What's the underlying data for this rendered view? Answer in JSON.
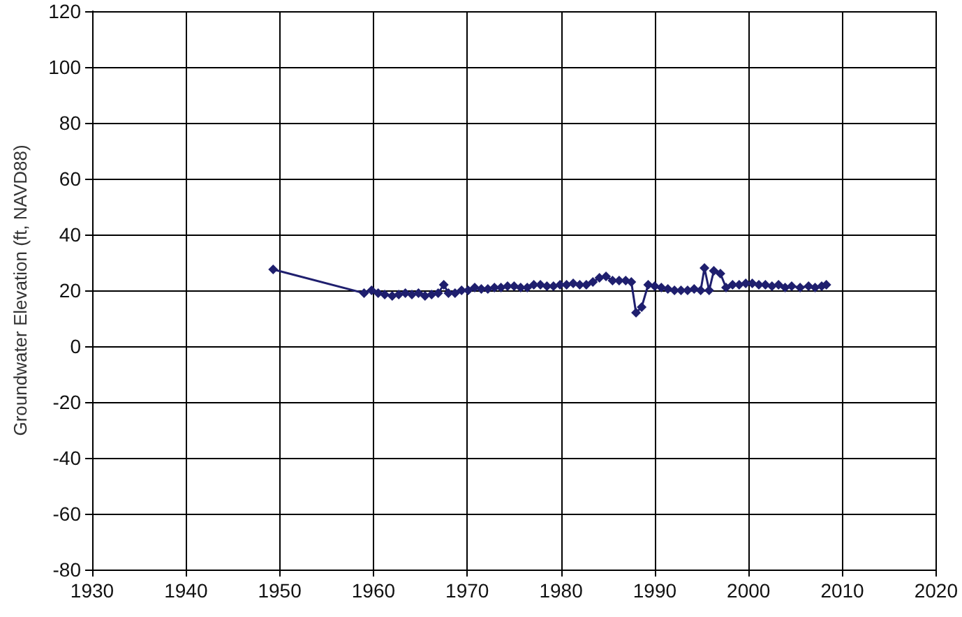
{
  "chart_data": {
    "type": "line",
    "ylabel": "Groundwater Elevation (ft, NAVD88)",
    "xlim": [
      1930,
      2020
    ],
    "xticks": [
      1930,
      1940,
      1950,
      1960,
      1970,
      1980,
      1990,
      2000,
      2010,
      2020
    ],
    "ylim": [
      -80,
      120
    ],
    "yticks": [
      -80,
      -60,
      -40,
      -20,
      0,
      20,
      40,
      60,
      80,
      100,
      120
    ],
    "grid": true,
    "marker": "diamond",
    "line_style": "solid",
    "series": [
      {
        "color": "#1f1f6e",
        "x": [
          1949.3,
          1959,
          1959.8,
          1960.5,
          1961.2,
          1962,
          1962.7,
          1963.4,
          1964.1,
          1964.8,
          1965.5,
          1966.2,
          1966.9,
          1967.5,
          1968,
          1968.7,
          1969.4,
          1970.1,
          1970.8,
          1971.5,
          1972.2,
          1972.9,
          1973.6,
          1974.3,
          1975,
          1975.7,
          1976.4,
          1977.1,
          1977.8,
          1978.5,
          1979.2,
          1979.9,
          1980.6,
          1981.3,
          1982,
          1982.7,
          1983.4,
          1984.1,
          1984.8,
          1985.5,
          1986.2,
          1986.9,
          1987.5,
          1988,
          1988.6,
          1989.3,
          1990,
          1990.7,
          1991.4,
          1992.1,
          1992.8,
          1993.5,
          1994.2,
          1994.9,
          1995.3,
          1995.8,
          1996.3,
          1997,
          1997.6,
          1998.3,
          1999,
          1999.7,
          2000.4,
          2001.1,
          2001.8,
          2002.5,
          2003.2,
          2003.9,
          2004.6,
          2005.5,
          2006.4,
          2007.1,
          2007.8,
          2008.3
        ],
        "values": [
          27.5,
          19,
          20,
          19,
          18.5,
          18,
          18.5,
          19,
          18.5,
          19,
          18,
          18.5,
          19,
          22,
          19,
          19,
          20,
          20,
          21,
          20.5,
          20.5,
          21,
          21,
          21.5,
          21.5,
          21,
          21,
          22,
          22,
          21.5,
          21.5,
          22,
          22,
          22.5,
          22,
          22,
          23,
          24.5,
          25,
          23.5,
          23.5,
          23.5,
          23,
          12,
          14,
          22,
          21.5,
          21,
          20.5,
          20,
          20,
          20,
          20.5,
          20,
          28,
          20,
          27,
          26,
          21,
          22,
          22,
          22.5,
          22.5,
          22,
          22,
          21.5,
          22,
          21,
          21.5,
          21,
          21.5,
          21,
          21.5,
          22
        ]
      }
    ]
  }
}
